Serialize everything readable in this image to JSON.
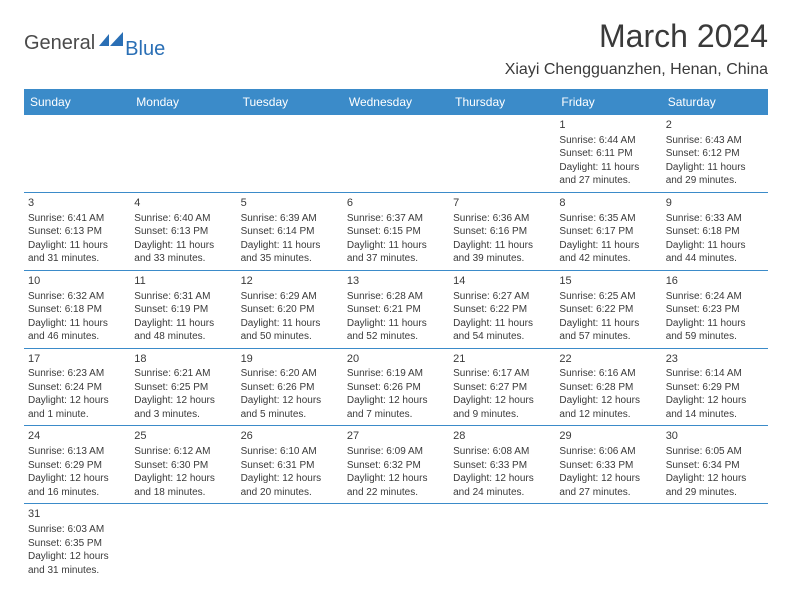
{
  "logo": {
    "general": "General",
    "blue": "Blue"
  },
  "title": "March 2024",
  "location": "Xiayi Chengguanzhen, Henan, China",
  "colors": {
    "header_bg": "#3b8bc9",
    "header_text": "#ffffff",
    "text": "#3a3a3a",
    "border": "#3b8bc9",
    "logo_gray": "#4a4a4a",
    "logo_blue": "#2a6fb5"
  },
  "weekdays": [
    "Sunday",
    "Monday",
    "Tuesday",
    "Wednesday",
    "Thursday",
    "Friday",
    "Saturday"
  ],
  "weeks": [
    [
      null,
      null,
      null,
      null,
      null,
      {
        "n": "1",
        "sunrise": "Sunrise: 6:44 AM",
        "sunset": "Sunset: 6:11 PM",
        "daylight": "Daylight: 11 hours and 27 minutes."
      },
      {
        "n": "2",
        "sunrise": "Sunrise: 6:43 AM",
        "sunset": "Sunset: 6:12 PM",
        "daylight": "Daylight: 11 hours and 29 minutes."
      }
    ],
    [
      {
        "n": "3",
        "sunrise": "Sunrise: 6:41 AM",
        "sunset": "Sunset: 6:13 PM",
        "daylight": "Daylight: 11 hours and 31 minutes."
      },
      {
        "n": "4",
        "sunrise": "Sunrise: 6:40 AM",
        "sunset": "Sunset: 6:13 PM",
        "daylight": "Daylight: 11 hours and 33 minutes."
      },
      {
        "n": "5",
        "sunrise": "Sunrise: 6:39 AM",
        "sunset": "Sunset: 6:14 PM",
        "daylight": "Daylight: 11 hours and 35 minutes."
      },
      {
        "n": "6",
        "sunrise": "Sunrise: 6:37 AM",
        "sunset": "Sunset: 6:15 PM",
        "daylight": "Daylight: 11 hours and 37 minutes."
      },
      {
        "n": "7",
        "sunrise": "Sunrise: 6:36 AM",
        "sunset": "Sunset: 6:16 PM",
        "daylight": "Daylight: 11 hours and 39 minutes."
      },
      {
        "n": "8",
        "sunrise": "Sunrise: 6:35 AM",
        "sunset": "Sunset: 6:17 PM",
        "daylight": "Daylight: 11 hours and 42 minutes."
      },
      {
        "n": "9",
        "sunrise": "Sunrise: 6:33 AM",
        "sunset": "Sunset: 6:18 PM",
        "daylight": "Daylight: 11 hours and 44 minutes."
      }
    ],
    [
      {
        "n": "10",
        "sunrise": "Sunrise: 6:32 AM",
        "sunset": "Sunset: 6:18 PM",
        "daylight": "Daylight: 11 hours and 46 minutes."
      },
      {
        "n": "11",
        "sunrise": "Sunrise: 6:31 AM",
        "sunset": "Sunset: 6:19 PM",
        "daylight": "Daylight: 11 hours and 48 minutes."
      },
      {
        "n": "12",
        "sunrise": "Sunrise: 6:29 AM",
        "sunset": "Sunset: 6:20 PM",
        "daylight": "Daylight: 11 hours and 50 minutes."
      },
      {
        "n": "13",
        "sunrise": "Sunrise: 6:28 AM",
        "sunset": "Sunset: 6:21 PM",
        "daylight": "Daylight: 11 hours and 52 minutes."
      },
      {
        "n": "14",
        "sunrise": "Sunrise: 6:27 AM",
        "sunset": "Sunset: 6:22 PM",
        "daylight": "Daylight: 11 hours and 54 minutes."
      },
      {
        "n": "15",
        "sunrise": "Sunrise: 6:25 AM",
        "sunset": "Sunset: 6:22 PM",
        "daylight": "Daylight: 11 hours and 57 minutes."
      },
      {
        "n": "16",
        "sunrise": "Sunrise: 6:24 AM",
        "sunset": "Sunset: 6:23 PM",
        "daylight": "Daylight: 11 hours and 59 minutes."
      }
    ],
    [
      {
        "n": "17",
        "sunrise": "Sunrise: 6:23 AM",
        "sunset": "Sunset: 6:24 PM",
        "daylight": "Daylight: 12 hours and 1 minute."
      },
      {
        "n": "18",
        "sunrise": "Sunrise: 6:21 AM",
        "sunset": "Sunset: 6:25 PM",
        "daylight": "Daylight: 12 hours and 3 minutes."
      },
      {
        "n": "19",
        "sunrise": "Sunrise: 6:20 AM",
        "sunset": "Sunset: 6:26 PM",
        "daylight": "Daylight: 12 hours and 5 minutes."
      },
      {
        "n": "20",
        "sunrise": "Sunrise: 6:19 AM",
        "sunset": "Sunset: 6:26 PM",
        "daylight": "Daylight: 12 hours and 7 minutes."
      },
      {
        "n": "21",
        "sunrise": "Sunrise: 6:17 AM",
        "sunset": "Sunset: 6:27 PM",
        "daylight": "Daylight: 12 hours and 9 minutes."
      },
      {
        "n": "22",
        "sunrise": "Sunrise: 6:16 AM",
        "sunset": "Sunset: 6:28 PM",
        "daylight": "Daylight: 12 hours and 12 minutes."
      },
      {
        "n": "23",
        "sunrise": "Sunrise: 6:14 AM",
        "sunset": "Sunset: 6:29 PM",
        "daylight": "Daylight: 12 hours and 14 minutes."
      }
    ],
    [
      {
        "n": "24",
        "sunrise": "Sunrise: 6:13 AM",
        "sunset": "Sunset: 6:29 PM",
        "daylight": "Daylight: 12 hours and 16 minutes."
      },
      {
        "n": "25",
        "sunrise": "Sunrise: 6:12 AM",
        "sunset": "Sunset: 6:30 PM",
        "daylight": "Daylight: 12 hours and 18 minutes."
      },
      {
        "n": "26",
        "sunrise": "Sunrise: 6:10 AM",
        "sunset": "Sunset: 6:31 PM",
        "daylight": "Daylight: 12 hours and 20 minutes."
      },
      {
        "n": "27",
        "sunrise": "Sunrise: 6:09 AM",
        "sunset": "Sunset: 6:32 PM",
        "daylight": "Daylight: 12 hours and 22 minutes."
      },
      {
        "n": "28",
        "sunrise": "Sunrise: 6:08 AM",
        "sunset": "Sunset: 6:33 PM",
        "daylight": "Daylight: 12 hours and 24 minutes."
      },
      {
        "n": "29",
        "sunrise": "Sunrise: 6:06 AM",
        "sunset": "Sunset: 6:33 PM",
        "daylight": "Daylight: 12 hours and 27 minutes."
      },
      {
        "n": "30",
        "sunrise": "Sunrise: 6:05 AM",
        "sunset": "Sunset: 6:34 PM",
        "daylight": "Daylight: 12 hours and 29 minutes."
      }
    ],
    [
      {
        "n": "31",
        "sunrise": "Sunrise: 6:03 AM",
        "sunset": "Sunset: 6:35 PM",
        "daylight": "Daylight: 12 hours and 31 minutes."
      },
      null,
      null,
      null,
      null,
      null,
      null
    ]
  ]
}
